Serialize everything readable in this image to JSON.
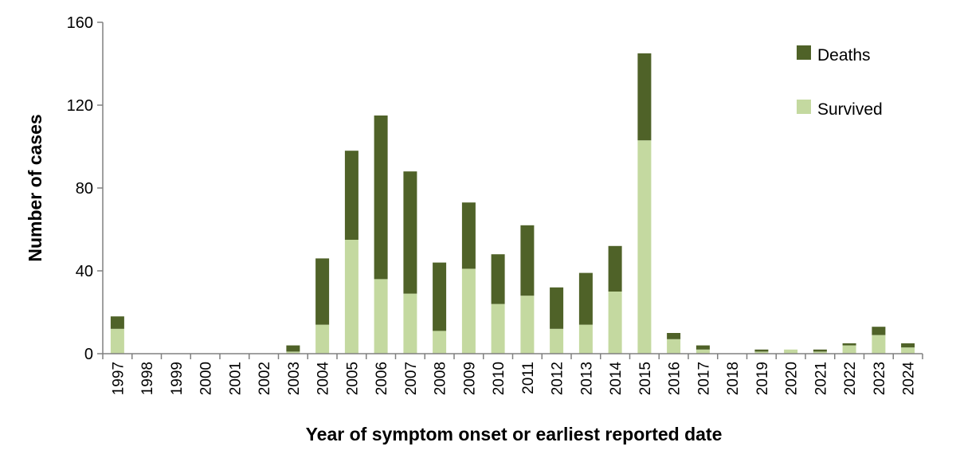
{
  "chart_data": {
    "type": "bar",
    "stacked": true,
    "title": "",
    "xlabel": "Year of symptom onset or earliest reported date",
    "ylabel": "Number of cases",
    "ylim": [
      0,
      160
    ],
    "yticks": [
      "0",
      "40",
      "80",
      "120",
      "160"
    ],
    "grid": false,
    "legend_position": "top-right",
    "categories": [
      "1997",
      "1998",
      "1999",
      "2000",
      "2001",
      "2002",
      "2003",
      "2004",
      "2005",
      "2006",
      "2007",
      "2008",
      "2009",
      "2010",
      "2011",
      "2012",
      "2013",
      "2014",
      "2015",
      "2016",
      "2017",
      "2018",
      "2019",
      "2020",
      "2021",
      "2022",
      "2023",
      "2024"
    ],
    "series": [
      {
        "name": "Survived",
        "color": "#c4d9a0",
        "values": [
          12,
          0,
          0,
          0,
          0,
          0,
          1,
          14,
          55,
          36,
          29,
          11,
          41,
          24,
          28,
          12,
          14,
          30,
          103,
          7,
          2,
          0,
          1,
          2,
          1,
          4,
          9,
          3
        ]
      },
      {
        "name": "Deaths",
        "color": "#4f6228",
        "values": [
          6,
          0,
          0,
          0,
          0,
          0,
          3,
          32,
          43,
          79,
          59,
          33,
          32,
          24,
          34,
          20,
          25,
          22,
          42,
          3,
          2,
          0,
          1,
          0,
          1,
          1,
          4,
          2
        ]
      }
    ]
  }
}
